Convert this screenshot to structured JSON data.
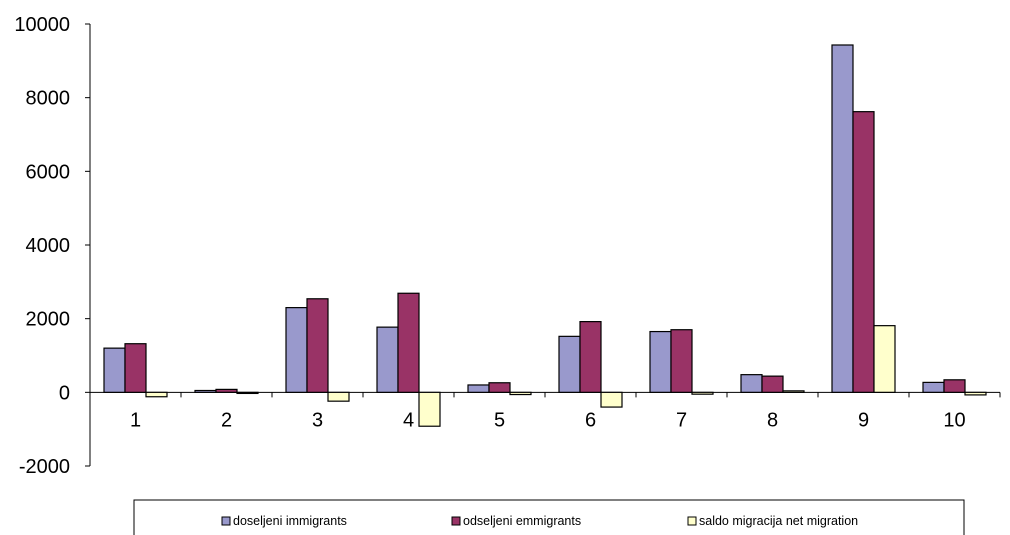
{
  "chart_data": {
    "type": "bar",
    "categories": [
      "1",
      "2",
      "3",
      "4",
      "5",
      "6",
      "7",
      "8",
      "9",
      "10"
    ],
    "series": [
      {
        "name": "doseljeni immigrants",
        "color": "#9999cc",
        "values": [
          1200,
          50,
          2300,
          1770,
          200,
          1520,
          1650,
          480,
          9430,
          270
        ]
      },
      {
        "name": "odseljeni emmigrants",
        "color": "#993366",
        "values": [
          1320,
          80,
          2540,
          2690,
          260,
          1920,
          1700,
          440,
          7620,
          340
        ]
      },
      {
        "name": "saldo migracija net migration",
        "color": "#ffffcc",
        "values": [
          -120,
          -30,
          -240,
          -920,
          -60,
          -400,
          -50,
          40,
          1810,
          -70
        ]
      }
    ],
    "ylim": [
      -2000,
      10000
    ],
    "yticks": [
      "-2000",
      "0",
      "2000",
      "4000",
      "6000",
      "8000",
      "10000"
    ],
    "grid": false,
    "legend_position": "bottom"
  }
}
